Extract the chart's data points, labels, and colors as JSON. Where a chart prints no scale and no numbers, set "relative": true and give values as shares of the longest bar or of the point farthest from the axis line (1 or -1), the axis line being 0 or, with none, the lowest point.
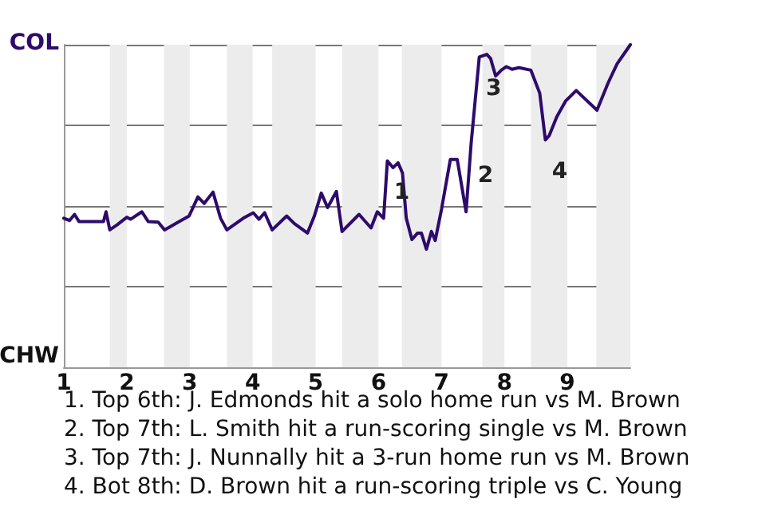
{
  "chart_data": {
    "type": "line",
    "relative": true,
    "xlim": [
      1,
      10
    ],
    "xticks": [
      1,
      2,
      3,
      4,
      5,
      6,
      7,
      8,
      9
    ],
    "grid": "y",
    "marker": "none",
    "line_style": "solid",
    "series": [
      {
        "color": "#2e0b6b",
        "x": [
          1,
          1.09,
          1.17,
          1.24,
          1.63,
          1.67,
          1.73,
          1.85,
          2,
          2.06,
          2.24,
          2.34,
          2.5,
          2.6,
          2.81,
          2.99,
          3.13,
          3.23,
          3.37,
          3.49,
          3.59,
          3.85,
          4.01,
          4.1,
          4.19,
          4.31,
          4.54,
          4.66,
          4.87,
          4.98,
          5.09,
          5.19,
          5.33,
          5.42,
          5.69,
          5.88,
          5.98,
          6.08,
          6.14,
          6.23,
          6.31,
          6.38,
          6.44,
          6.53,
          6.62,
          6.68,
          6.76,
          6.84,
          6.9,
          7,
          7.14,
          7.25,
          7.39,
          7.47,
          7.6,
          7.72,
          7.78,
          7.86,
          7.95,
          8.03,
          8.12,
          8.23,
          8.42,
          8.56,
          8.65,
          8.71,
          8.83,
          8.97,
          9.14,
          9.47,
          9.65,
          9.79,
          10
        ],
        "values": [
          0.462,
          0.455,
          0.474,
          0.452,
          0.452,
          0.482,
          0.426,
          0.442,
          0.465,
          0.459,
          0.482,
          0.452,
          0.45,
          0.426,
          0.449,
          0.469,
          0.528,
          0.508,
          0.543,
          0.462,
          0.426,
          0.462,
          0.479,
          0.459,
          0.479,
          0.426,
          0.469,
          0.446,
          0.416,
          0.469,
          0.54,
          0.495,
          0.545,
          0.421,
          0.474,
          0.432,
          0.482,
          0.462,
          0.64,
          0.619,
          0.634,
          0.602,
          0.462,
          0.396,
          0.416,
          0.416,
          0.366,
          0.421,
          0.393,
          0.49,
          0.644,
          0.644,
          0.482,
          0.693,
          0.962,
          0.97,
          0.957,
          0.903,
          0.921,
          0.932,
          0.924,
          0.929,
          0.921,
          0.85,
          0.705,
          0.718,
          0.776,
          0.825,
          0.858,
          0.797,
          0.883,
          0.941,
          1
        ]
      }
    ],
    "bands": [
      {
        "axis": "x",
        "from": 1.73,
        "to": 2,
        "color": "#ececec"
      },
      {
        "axis": "x",
        "from": 2.59,
        "to": 3,
        "color": "#ececec"
      },
      {
        "axis": "x",
        "from": 3.59,
        "to": 4,
        "color": "#ececec"
      },
      {
        "axis": "x",
        "from": 4.31,
        "to": 5,
        "color": "#ececec"
      },
      {
        "axis": "x",
        "from": 5.42,
        "to": 6,
        "color": "#ececec"
      },
      {
        "axis": "x",
        "from": 6.37,
        "to": 7,
        "color": "#ececec"
      },
      {
        "axis": "x",
        "from": 7.65,
        "to": 8,
        "color": "#ececec"
      },
      {
        "axis": "x",
        "from": 8.42,
        "to": 9,
        "color": "#ececec"
      },
      {
        "axis": "x",
        "from": 9.46,
        "to": 10,
        "color": "#ececec"
      }
    ],
    "annotations": [
      "COL",
      "CHW",
      {
        "text": "1",
        "x": 6.14,
        "y": 0.64
      },
      {
        "text": "2",
        "x": 7.47,
        "y": 0.693
      },
      {
        "text": "3",
        "x": 7.6,
        "y": 0.962
      },
      {
        "text": "4",
        "x": 8.65,
        "y": 0.705
      },
      "1. Top 6th: J. Edmonds hit a solo home run vs M. Brown",
      "2. Top 7th: L. Smith hit a run-scoring single vs M. Brown",
      "3. Top 7th: J. Nunnally hit a 3-run home run vs M. Brown",
      "4. Bot 8th: D. Brown hit a run-scoring triple vs C. Young"
    ]
  }
}
